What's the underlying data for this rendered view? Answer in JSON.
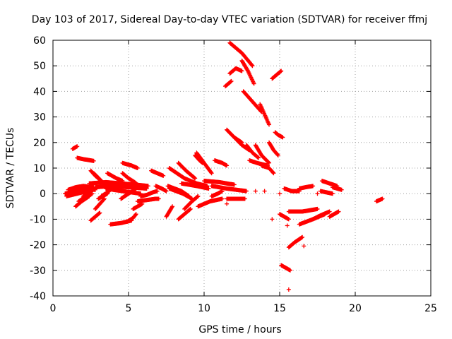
{
  "chart_data": {
    "type": "scatter",
    "title": "Day 103 of 2017, Sidereal Day-to-day VTEC variation (SDTVAR) for receiver ffmj",
    "xlabel": "GPS time / hours",
    "ylabel": "SDTVAR / TECUs",
    "xlim": [
      0,
      25
    ],
    "ylim": [
      -40,
      60
    ],
    "xticks": [
      0,
      5,
      10,
      15,
      20,
      25
    ],
    "yticks": [
      -40,
      -30,
      -20,
      -10,
      0,
      10,
      20,
      30,
      40,
      50,
      60
    ],
    "grid": true,
    "marker": "+",
    "color": "#ff0000",
    "tracks": [
      {
        "x": [
          0.8,
          1.5,
          2.2,
          2.8
        ],
        "y": [
          0,
          1,
          2,
          1.5
        ]
      },
      {
        "x": [
          0.9,
          1.6,
          2.3
        ],
        "y": [
          -1,
          0,
          1
        ]
      },
      {
        "x": [
          1.0,
          1.5,
          2.0,
          2.7
        ],
        "y": [
          1.5,
          2.5,
          3,
          2.5
        ]
      },
      {
        "x": [
          1.3,
          1.6
        ],
        "y": [
          17.5,
          18.5
        ]
      },
      {
        "x": [
          1.6,
          2.0,
          2.5,
          2.7
        ],
        "y": [
          14,
          13.5,
          13,
          12.8
        ]
      },
      {
        "x": [
          1.5,
          1.9,
          2.4
        ],
        "y": [
          -5,
          -3,
          -1
        ]
      },
      {
        "x": [
          1.7,
          2.2,
          2.6
        ],
        "y": [
          -3,
          -1,
          0
        ]
      },
      {
        "x": [
          2.0,
          2.4,
          2.8
        ],
        "y": [
          -1,
          0.5,
          2
        ]
      },
      {
        "x": [
          2.5,
          2.8,
          3.1
        ],
        "y": [
          -10.5,
          -9,
          -7.5
        ]
      },
      {
        "x": [
          2.5,
          2.8,
          3.2
        ],
        "y": [
          9,
          7,
          5
        ]
      },
      {
        "x": [
          2.7,
          3.2,
          3.4
        ],
        "y": [
          8,
          5,
          3.5
        ]
      },
      {
        "x": [
          2.8,
          3.1,
          3.4
        ],
        "y": [
          -6,
          -4,
          -2
        ]
      },
      {
        "x": [
          3.0,
          3.3,
          3.6
        ],
        "y": [
          -2,
          -1,
          0
        ]
      },
      {
        "x": [
          3.2,
          3.6,
          3.9
        ],
        "y": [
          -1,
          0.5,
          2
        ]
      },
      {
        "x": [
          2.4,
          3.5,
          4.5,
          5.5,
          6.3
        ],
        "y": [
          4,
          4.5,
          4,
          3.5,
          3
        ]
      },
      {
        "x": [
          2.8,
          3.8,
          5.0,
          6.2
        ],
        "y": [
          2.5,
          3,
          2.5,
          2
        ]
      },
      {
        "x": [
          3.5,
          4.0,
          4.6,
          5.2,
          5.8
        ],
        "y": [
          2,
          1.5,
          1,
          0.5,
          0
        ]
      },
      {
        "x": [
          3.6,
          4.2,
          4.6
        ],
        "y": [
          8,
          6,
          5
        ]
      },
      {
        "x": [
          3.8,
          4.5,
          5.2
        ],
        "y": [
          -12,
          -11.5,
          -10.5
        ]
      },
      {
        "x": [
          4.9,
          5.3,
          5.5
        ],
        "y": [
          -11,
          -9.5,
          -8
        ]
      },
      {
        "x": [
          4.5,
          5.0,
          5.4
        ],
        "y": [
          -2,
          0,
          1.5
        ]
      },
      {
        "x": [
          4.6,
          5.0,
          5.4,
          5.6
        ],
        "y": [
          8,
          6,
          4.5,
          3.5
        ]
      },
      {
        "x": [
          4.6,
          5.2,
          5.6
        ],
        "y": [
          12,
          11,
          10
        ]
      },
      {
        "x": [
          5.3,
          5.6,
          5.9
        ],
        "y": [
          -6,
          -5,
          -4
        ]
      },
      {
        "x": [
          5.6,
          6.2,
          6.8,
          7.0
        ],
        "y": [
          -3,
          -2.5,
          -2,
          -2
        ]
      },
      {
        "x": [
          5.8,
          6.2,
          6.6,
          6.9
        ],
        "y": [
          -1,
          -0.5,
          0.5,
          1
        ]
      },
      {
        "x": [
          6.5,
          6.9,
          7.3
        ],
        "y": [
          9,
          8,
          7
        ]
      },
      {
        "x": [
          6.8,
          7.2,
          7.5
        ],
        "y": [
          3,
          2,
          1
        ]
      },
      {
        "x": [
          7.5,
          7.7,
          7.9
        ],
        "y": [
          -9,
          -7,
          -5
        ]
      },
      {
        "x": [
          7.6,
          8.5,
          9.0
        ],
        "y": [
          3,
          1,
          -1
        ]
      },
      {
        "x": [
          7.7,
          8.6,
          9.2
        ],
        "y": [
          2,
          0,
          -2
        ]
      },
      {
        "x": [
          7.7,
          8.2,
          8.7
        ],
        "y": [
          10,
          8,
          6
        ]
      },
      {
        "x": [
          8.3,
          8.8,
          9.4
        ],
        "y": [
          12,
          9,
          6
        ]
      },
      {
        "x": [
          8.3,
          8.7,
          9.1
        ],
        "y": [
          -10,
          -8,
          -6
        ]
      },
      {
        "x": [
          8.5,
          9.5,
          10.3
        ],
        "y": [
          4,
          3,
          2
        ]
      },
      {
        "x": [
          8.7,
          9.5,
          10.2
        ],
        "y": [
          6,
          4,
          3
        ]
      },
      {
        "x": [
          8.7,
          9.2,
          9.6
        ],
        "y": [
          -6,
          -3,
          -1
        ]
      },
      {
        "x": [
          9.4,
          9.7,
          9.9
        ],
        "y": [
          15,
          13,
          12
        ]
      },
      {
        "x": [
          9.5,
          10.0,
          10.5
        ],
        "y": [
          16,
          12,
          8
        ]
      },
      {
        "x": [
          9.6,
          10.4,
          11.2
        ],
        "y": [
          -5,
          -3,
          -2
        ]
      },
      {
        "x": [
          10.0,
          11.0,
          12.0
        ],
        "y": [
          5,
          4.5,
          3.5
        ]
      },
      {
        "x": [
          10.5,
          11.5,
          12.8
        ],
        "y": [
          3,
          2,
          1
        ]
      },
      {
        "x": [
          10.5,
          10.9,
          11.2
        ],
        "y": [
          -1,
          0,
          1
        ]
      },
      {
        "x": [
          10.7,
          11.2,
          11.5
        ],
        "y": [
          13,
          12,
          11
        ]
      },
      {
        "x": [
          11.4,
          11.6,
          11.8
        ],
        "y": [
          42,
          43,
          44
        ]
      },
      {
        "x": [
          11.5,
          12.0,
          12.5
        ],
        "y": [
          25,
          22,
          20
        ]
      },
      {
        "x": [
          11.7,
          12.5,
          13.2
        ],
        "y": [
          59,
          55,
          50
        ]
      },
      {
        "x": [
          11.7,
          12.1,
          12.5
        ],
        "y": [
          47,
          49,
          48
        ]
      },
      {
        "x": [
          12.0,
          12.5,
          13.0
        ],
        "y": [
          22,
          19,
          17
        ]
      },
      {
        "x": [
          11.5,
          12.0,
          12.7
        ],
        "y": [
          -2,
          -2,
          -2
        ]
      },
      {
        "x": [
          12.5,
          12.9,
          13.3
        ],
        "y": [
          52,
          48,
          43
        ]
      },
      {
        "x": [
          12.6,
          13.2,
          13.8
        ],
        "y": [
          40,
          36,
          32
        ]
      },
      {
        "x": [
          12.8,
          13.2,
          13.6
        ],
        "y": [
          19,
          16,
          14
        ]
      },
      {
        "x": [
          13.0,
          13.5,
          14.2
        ],
        "y": [
          13,
          12,
          11
        ]
      },
      {
        "x": [
          13.4,
          13.8,
          14.3
        ],
        "y": [
          19,
          15,
          12
        ]
      },
      {
        "x": [
          13.7,
          14.0,
          14.3
        ],
        "y": [
          35,
          31,
          27
        ]
      },
      {
        "x": [
          13.8,
          14.3,
          14.6
        ],
        "y": [
          11,
          10,
          8
        ]
      },
      {
        "x": [
          14.3,
          14.6,
          14.9
        ],
        "y": [
          20,
          17,
          15
        ]
      },
      {
        "x": [
          14.5,
          14.8,
          15.1
        ],
        "y": [
          45,
          46.5,
          48
        ]
      },
      {
        "x": [
          14.7,
          14.9,
          15.2
        ],
        "y": [
          24,
          23,
          22
        ]
      },
      {
        "x": [
          15.1,
          15.4,
          15.7
        ],
        "y": [
          -28,
          -29,
          -30
        ]
      },
      {
        "x": [
          15.0,
          15.3,
          15.6
        ],
        "y": [
          -8,
          -9,
          -10
        ]
      },
      {
        "x": [
          15.3,
          15.8,
          16.3
        ],
        "y": [
          2,
          1,
          1
        ]
      },
      {
        "x": [
          15.6,
          16.0,
          16.5
        ],
        "y": [
          -21,
          -19,
          -17
        ]
      },
      {
        "x": [
          15.6,
          16.5,
          17.5
        ],
        "y": [
          -7,
          -7,
          -6
        ]
      },
      {
        "x": [
          16.3,
          16.7,
          17.2
        ],
        "y": [
          2,
          2.5,
          3
        ]
      },
      {
        "x": [
          16.3,
          17.2,
          18.0
        ],
        "y": [
          -12,
          -10,
          -8
        ]
      },
      {
        "x": [
          17.2,
          17.7,
          18.3
        ],
        "y": [
          -10,
          -8.5,
          -7
        ]
      },
      {
        "x": [
          17.8,
          18.3,
          18.8
        ],
        "y": [
          5,
          4,
          3
        ]
      },
      {
        "x": [
          17.7,
          18.1,
          18.5
        ],
        "y": [
          1,
          0.5,
          0
        ]
      },
      {
        "x": [
          18.5,
          18.8,
          19.1
        ],
        "y": [
          2.5,
          2,
          1.5
        ]
      },
      {
        "x": [
          18.3,
          18.6,
          18.9
        ],
        "y": [
          -9,
          -8,
          -7
        ]
      },
      {
        "x": [
          21.4,
          21.6,
          21.8
        ],
        "y": [
          -3,
          -2.5,
          -2
        ]
      }
    ],
    "points": [
      {
        "x": 11.5,
        "y": -4
      },
      {
        "x": 13.4,
        "y": 1
      },
      {
        "x": 14.0,
        "y": 1
      },
      {
        "x": 14.5,
        "y": -10
      },
      {
        "x": 15.0,
        "y": 0
      },
      {
        "x": 15.5,
        "y": -12.5
      },
      {
        "x": 15.6,
        "y": -37.5
      },
      {
        "x": 16.6,
        "y": -20.5
      },
      {
        "x": 17.5,
        "y": 0
      }
    ]
  }
}
